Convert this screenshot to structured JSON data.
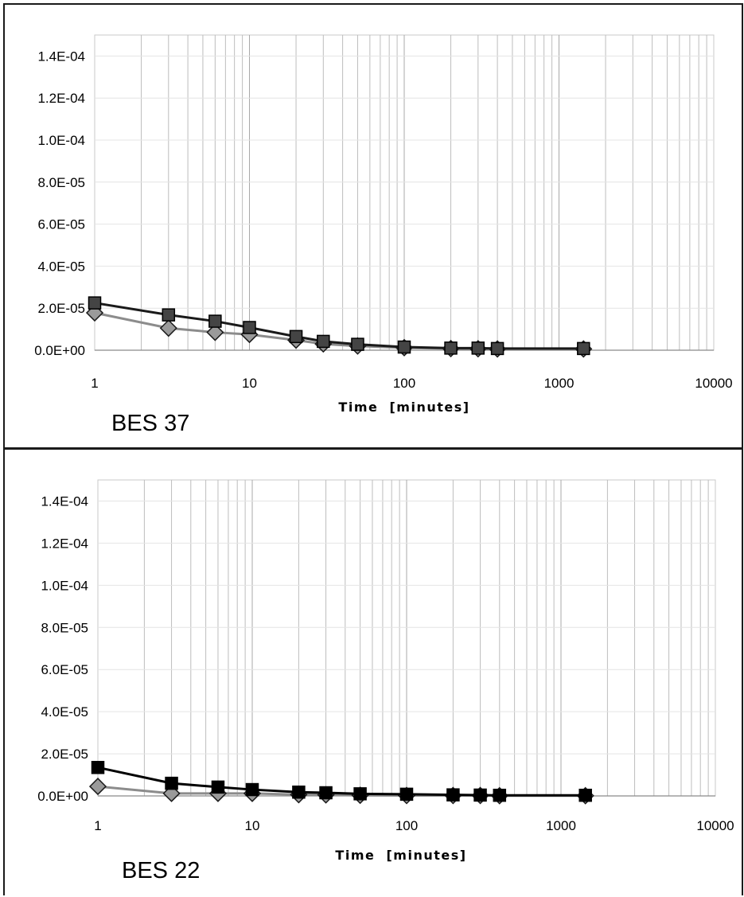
{
  "chart_data": [
    {
      "type": "line",
      "title": "BES 37",
      "xlabel": "Time  [minutes]",
      "ylabel": "",
      "xscale": "log",
      "xlim": [
        1,
        10000
      ],
      "ylim": [
        0,
        0.00015
      ],
      "x_tick_labels": [
        "1",
        "10",
        "100",
        "1000",
        "10000"
      ],
      "y_tick_labels": [
        "0.0E+00",
        "2.0E-05",
        "4.0E-05",
        "6.0E-05",
        "8.0E-05",
        "1.0E-04",
        "1.2E-04",
        "1.4E-04"
      ],
      "grid": true,
      "legend": "none",
      "x": [
        1,
        3,
        6,
        10,
        20,
        30,
        50,
        100,
        200,
        300,
        400,
        1440
      ],
      "series": [
        {
          "marker": "square",
          "color": "#1a1a1a",
          "fill": "#444444",
          "values": [
            2.25e-05,
            1.68e-05,
            1.38e-05,
            1.08e-05,
            6.5e-06,
            4.2e-06,
            2.8e-06,
            1.5e-06,
            1e-06,
            1e-06,
            8e-07,
            8e-07
          ]
        },
        {
          "marker": "diamond",
          "color": "#8c8c8c",
          "fill": "#9a9a9a",
          "values": [
            1.78e-05,
            1.05e-05,
            8.5e-06,
            7.5e-06,
            4.8e-06,
            3e-06,
            2e-06,
            1.2e-06,
            8e-07,
            7e-07,
            6e-07,
            6e-07
          ]
        }
      ]
    },
    {
      "type": "line",
      "title": "BES 22",
      "xlabel": "Time  [minutes]",
      "ylabel": "",
      "xscale": "log",
      "xlim": [
        1,
        10000
      ],
      "ylim": [
        0,
        0.00015
      ],
      "x_tick_labels": [
        "1",
        "10",
        "100",
        "1000",
        "10000"
      ],
      "y_tick_labels": [
        "0.0E+00",
        "2.0E-05",
        "4.0E-05",
        "6.0E-05",
        "8.0E-05",
        "1.0E-04",
        "1.2E-04",
        "1.4E-04"
      ],
      "grid": true,
      "legend": "none",
      "x": [
        1,
        3,
        6,
        10,
        20,
        30,
        50,
        100,
        200,
        300,
        400,
        1440
      ],
      "series": [
        {
          "marker": "square",
          "color": "#000000",
          "fill": "#000000",
          "values": [
            1.35e-05,
            6e-06,
            4.2e-06,
            3e-06,
            1.8e-06,
            1.5e-06,
            1e-06,
            8e-07,
            5e-07,
            4e-07,
            3e-07,
            3e-07
          ]
        },
        {
          "marker": "diamond",
          "color": "#8c8c8c",
          "fill": "#9a9a9a",
          "values": [
            4.5e-06,
            1.2e-06,
            1.2e-06,
            1.2e-06,
            6e-07,
            5e-07,
            3e-07,
            2e-07,
            2e-07,
            2e-07,
            1e-07,
            1e-07
          ]
        }
      ]
    }
  ]
}
